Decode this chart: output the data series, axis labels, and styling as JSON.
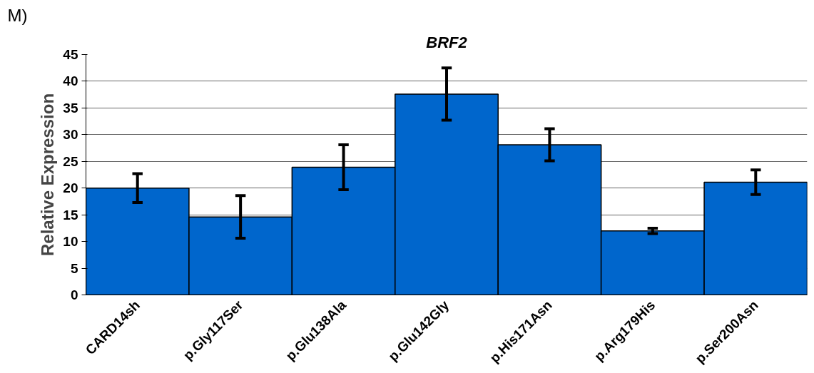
{
  "chart_data": {
    "type": "bar",
    "title": "BRF2",
    "ylabel": "Relative Expression",
    "annotations": [
      "M)"
    ],
    "categories": [
      "CARD14sh",
      "p.Gly117Ser",
      "p.Glu138Ala",
      "p.Glu142Gly",
      "p.His171Asn",
      "p.Arg179His",
      "p.Ser200Asn"
    ],
    "values": [
      20.0,
      14.6,
      23.9,
      37.6,
      28.1,
      12.0,
      21.1
    ],
    "errors": [
      2.7,
      4.0,
      4.2,
      4.9,
      3.0,
      0.5,
      2.3
    ],
    "color": "#0066cc",
    "ylim": [
      0,
      45
    ],
    "yticks": [
      0,
      5,
      10,
      15,
      20,
      25,
      30,
      35,
      40,
      45
    ],
    "grid": "y"
  }
}
